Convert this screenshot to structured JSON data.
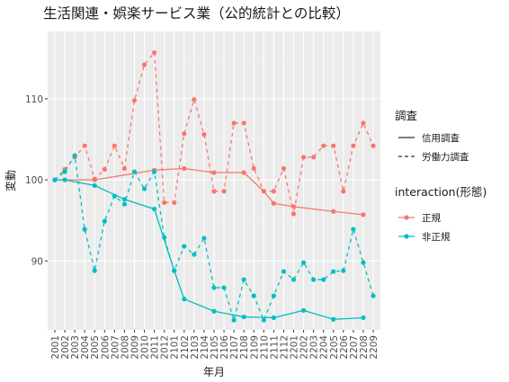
{
  "chart_data": {
    "type": "line",
    "title": "生活関連・娯楽サービス業（公的統計との比較）",
    "xlabel": "年月",
    "ylabel": "変動",
    "categories": [
      "2001",
      "2002",
      "2003",
      "2004",
      "2005",
      "2006",
      "2007",
      "2008",
      "2009",
      "2010",
      "2011",
      "2012",
      "2101",
      "2102",
      "2103",
      "2104",
      "2105",
      "2106",
      "2107",
      "2108",
      "2109",
      "2110",
      "2111",
      "2112",
      "2201",
      "2202",
      "2203",
      "2204",
      "2205",
      "2206",
      "2207",
      "2208",
      "2209"
    ],
    "y_ticks": [
      90,
      100,
      110
    ],
    "ylim": [
      81.5,
      118.3
    ],
    "grid": true,
    "legend_placement": "right",
    "linetype_legend": {
      "title": "調査",
      "items": [
        {
          "label": "信用調査",
          "dash": "solid"
        },
        {
          "label": "労働力調査",
          "dash": "dashed"
        }
      ]
    },
    "color_legend": {
      "title": "interaction(形態)",
      "items": [
        {
          "label": "正規",
          "color": "#F8766D"
        },
        {
          "label": "非正規",
          "color": "#00BFC4"
        }
      ]
    },
    "series": [
      {
        "group": "正規",
        "survey": "労働力調査",
        "color": "#F8766D",
        "dash": "dashed",
        "x": [
          "2001",
          "2002",
          "2003",
          "2004",
          "2005",
          "2006",
          "2007",
          "2008",
          "2009",
          "2010",
          "2011",
          "2012",
          "2101",
          "2102",
          "2103",
          "2104",
          "2105",
          "2106",
          "2107",
          "2108",
          "2109",
          "2110",
          "2111",
          "2112",
          "2201",
          "2202",
          "2203",
          "2204",
          "2205",
          "2206",
          "2207",
          "2208",
          "2209"
        ],
        "values": [
          100,
          101.3,
          102.8,
          104.2,
          100.1,
          101.3,
          104.2,
          101.4,
          109.8,
          114.2,
          115.7,
          97.2,
          97.2,
          105.7,
          109.9,
          105.6,
          98.6,
          98.6,
          107,
          107,
          101.4,
          98.6,
          98.6,
          101.4,
          95.8,
          102.8,
          102.8,
          104.2,
          104.2,
          98.6,
          104.2,
          107,
          104.2
        ]
      },
      {
        "group": "正規",
        "survey": "信用調査",
        "color": "#F8766D",
        "dash": "solid",
        "x": [
          "2001",
          "2002",
          "2005",
          "2011",
          "2102",
          "2105",
          "2108",
          "2110",
          "2111",
          "2201",
          "2205",
          "2208"
        ],
        "values": [
          100,
          100,
          100,
          101.2,
          101.4,
          100.9,
          100.9,
          98.6,
          97.1,
          96.7,
          96.1,
          95.7
        ]
      },
      {
        "group": "非正規",
        "survey": "労働力調査",
        "color": "#00BFC4",
        "dash": "dashed",
        "x": [
          "2001",
          "2002",
          "2003",
          "2004",
          "2005",
          "2006",
          "2007",
          "2008",
          "2009",
          "2010",
          "2011",
          "2012",
          "2101",
          "2102",
          "2103",
          "2104",
          "2105",
          "2106",
          "2107",
          "2108",
          "2109",
          "2110",
          "2111",
          "2112",
          "2201",
          "2202",
          "2203",
          "2204",
          "2205",
          "2206",
          "2207",
          "2208",
          "2209"
        ],
        "values": [
          100,
          101,
          103,
          93.9,
          88.8,
          94.9,
          98,
          97,
          101,
          98.9,
          101,
          92.9,
          88.8,
          91.8,
          90.8,
          92.8,
          86.7,
          86.7,
          82.7,
          87.7,
          85.7,
          82.7,
          85.7,
          88.7,
          87.7,
          89.8,
          87.7,
          87.7,
          88.7,
          88.8,
          93.9,
          89.8,
          85.7
        ]
      },
      {
        "group": "非正規",
        "survey": "信用調査",
        "color": "#00BFC4",
        "dash": "solid",
        "x": [
          "2001",
          "2002",
          "2005",
          "2008",
          "2011",
          "2101",
          "2102",
          "2105",
          "2108",
          "2111",
          "2202",
          "2205",
          "2208"
        ],
        "values": [
          100,
          100,
          99.3,
          97.6,
          96.4,
          88.8,
          85.3,
          83.8,
          83.1,
          83,
          83.9,
          82.8,
          83
        ]
      }
    ]
  }
}
